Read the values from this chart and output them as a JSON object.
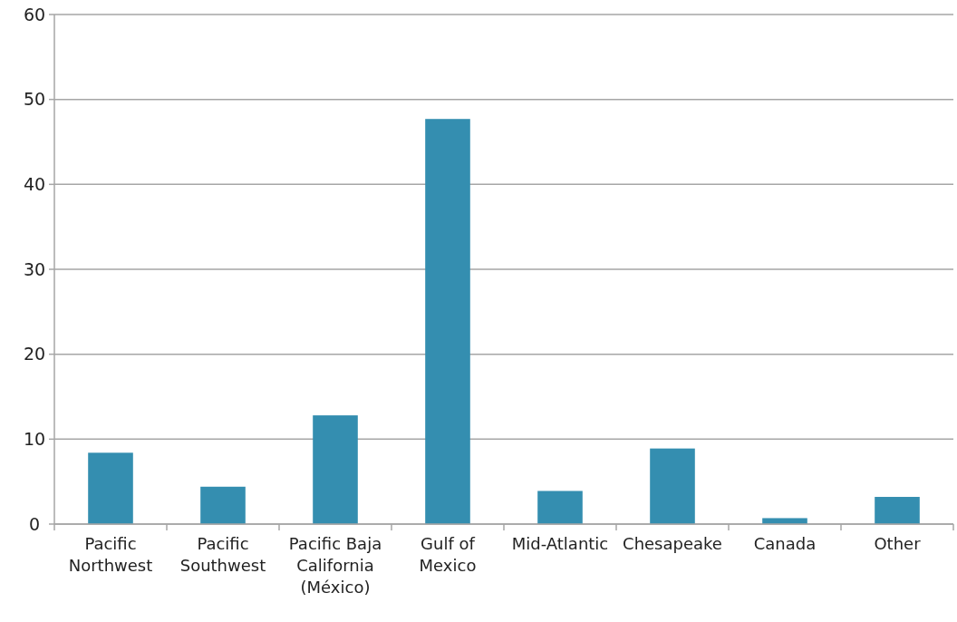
{
  "chart_data": {
    "type": "bar",
    "categories": [
      "Pacific Northwest",
      "Pacific Southwest",
      "Pacific Baja California (México)",
      "Gulf of Mexico",
      "Mid-Atlantic",
      "Chesapeake",
      "Canada",
      "Other"
    ],
    "values": [
      8.4,
      4.4,
      12.8,
      47.7,
      3.9,
      8.9,
      0.7,
      3.2
    ],
    "color": "#348eb0",
    "ylim": [
      0,
      60
    ],
    "yticks": [
      0,
      10,
      20,
      30,
      40,
      50,
      60
    ],
    "grid": "y"
  }
}
